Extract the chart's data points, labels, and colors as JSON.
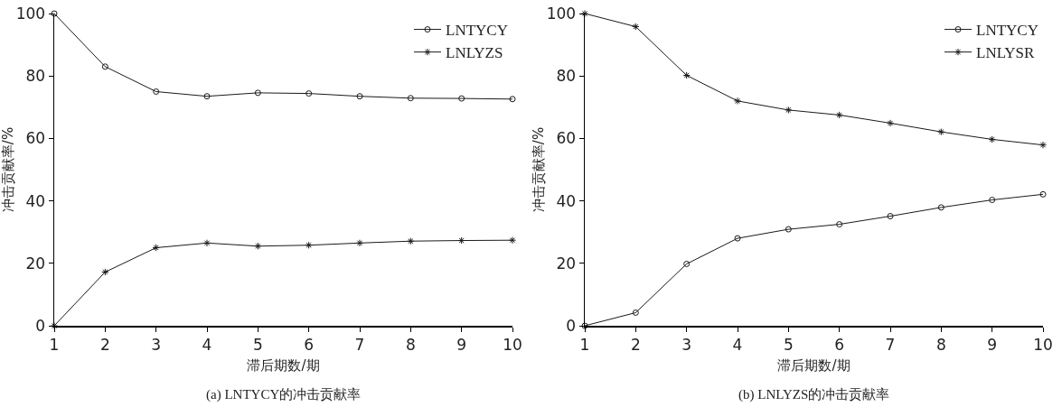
{
  "chart_data": [
    {
      "type": "line",
      "title": "(a) LNTYCY的冲击贡献率",
      "xlabel": "滞后期数/期",
      "ylabel": "冲击贡献率/%",
      "x": [
        1,
        2,
        3,
        4,
        5,
        6,
        7,
        8,
        9,
        10
      ],
      "series": [
        {
          "name": "LNTYCY",
          "color": "#1a1a1a",
          "marker": "circle",
          "values": [
            100,
            83,
            75,
            73.5,
            74.6,
            74.4,
            73.5,
            72.9,
            72.8,
            72.6
          ]
        },
        {
          "name": "LNLYZS",
          "color": "#1a1a1a",
          "marker": "cross",
          "values": [
            0,
            17.2,
            25,
            26.5,
            25.5,
            25.8,
            26.5,
            27.1,
            27.3,
            27.4
          ]
        }
      ],
      "xlim": [
        1,
        10
      ],
      "xticks": [
        1,
        2,
        3,
        4,
        5,
        6,
        7,
        8,
        9,
        10
      ],
      "ylim": [
        0,
        100
      ],
      "yticks": [
        0,
        20,
        40,
        60,
        80,
        100
      ],
      "grid": false,
      "legend": "top right",
      "line_style": "solid"
    },
    {
      "type": "line",
      "title": "(b) LNLYZS的冲击贡献率",
      "xlabel": "滞后期数/期",
      "ylabel": "冲击贡献率/%",
      "x": [
        1,
        2,
        3,
        4,
        5,
        6,
        7,
        8,
        9,
        10
      ],
      "series": [
        {
          "name": "LNTYCY",
          "color": "#1a1a1a",
          "marker": "circle",
          "values": [
            0,
            4.2,
            19.8,
            28,
            30.9,
            32.5,
            35.1,
            37.9,
            40.3,
            42.1
          ]
        },
        {
          "name": "LNLYSR",
          "color": "#1a1a1a",
          "marker": "cross",
          "values": [
            100,
            95.8,
            80.2,
            72,
            69.1,
            67.5,
            64.9,
            62.1,
            59.7,
            57.9
          ]
        }
      ],
      "xlim": [
        1,
        10
      ],
      "xticks": [
        1,
        2,
        3,
        4,
        5,
        6,
        7,
        8,
        9,
        10
      ],
      "ylim": [
        0,
        100
      ],
      "yticks": [
        0,
        20,
        40,
        60,
        80,
        100
      ],
      "grid": false,
      "legend": "top right",
      "line_style": "solid"
    }
  ]
}
